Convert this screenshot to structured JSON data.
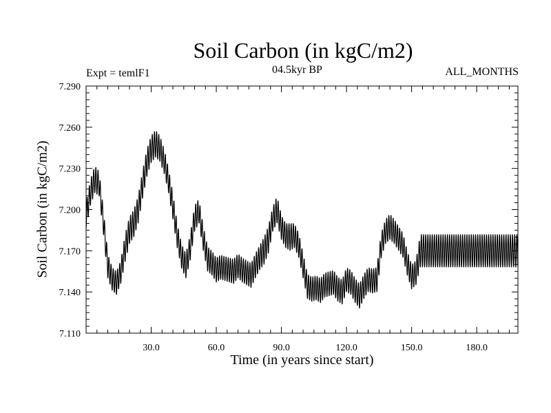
{
  "chart_data": {
    "type": "line",
    "title": "Soil Carbon (in kgC/m2)",
    "subtitle_left": "Expt = temlF1",
    "subtitle_center": "04.5kyr BP",
    "subtitle_right": "ALL_MONTHS",
    "xlabel": "Time (in years since start)",
    "ylabel": "Soil Carbon (in kgC/m2)",
    "xlim": [
      0,
      199
    ],
    "ylim": [
      7.11,
      7.29
    ],
    "xticks": [
      "30.0",
      "60.0",
      "90.0",
      "120.0",
      "150.0",
      "180.0"
    ],
    "xtick_values": [
      30,
      60,
      90,
      120,
      150,
      180
    ],
    "yticks": [
      "7.110",
      "7.140",
      "7.170",
      "7.200",
      "7.230",
      "7.260",
      "7.290"
    ],
    "ytick_values": [
      7.11,
      7.14,
      7.17,
      7.2,
      7.23,
      7.26,
      7.29
    ],
    "grid": false,
    "line_color": "#000000",
    "series": [
      {
        "name": "",
        "envelope_note": "annual-cycle band; lo/hi are monthly min/max per year",
        "x": [
          0,
          2,
          4,
          6,
          8,
          10,
          12,
          14,
          16,
          18,
          20,
          22,
          24,
          26,
          28,
          30,
          32,
          34,
          36,
          38,
          40,
          42,
          44,
          46,
          48,
          50,
          52,
          54,
          56,
          58,
          60,
          62,
          64,
          66,
          68,
          70,
          72,
          74,
          76,
          78,
          80,
          82,
          84,
          86,
          88,
          90,
          92,
          94,
          96,
          98,
          100,
          102,
          104,
          106,
          108,
          110,
          112,
          114,
          116,
          118,
          120,
          122,
          124,
          126,
          128,
          130,
          132,
          134,
          136,
          138,
          140,
          142,
          144,
          146,
          148,
          150,
          152,
          154,
          156,
          160,
          170,
          180,
          190,
          199
        ],
        "lo": [
          7.186,
          7.203,
          7.212,
          7.21,
          7.182,
          7.15,
          7.141,
          7.138,
          7.146,
          7.162,
          7.175,
          7.18,
          7.19,
          7.208,
          7.224,
          7.234,
          7.238,
          7.235,
          7.226,
          7.212,
          7.193,
          7.172,
          7.157,
          7.15,
          7.163,
          7.184,
          7.19,
          7.17,
          7.155,
          7.152,
          7.147,
          7.149,
          7.148,
          7.147,
          7.146,
          7.15,
          7.147,
          7.145,
          7.143,
          7.15,
          7.156,
          7.16,
          7.168,
          7.184,
          7.19,
          7.178,
          7.172,
          7.17,
          7.172,
          7.165,
          7.15,
          7.135,
          7.133,
          7.134,
          7.132,
          7.136,
          7.137,
          7.138,
          7.133,
          7.131,
          7.14,
          7.138,
          7.132,
          7.128,
          7.135,
          7.14,
          7.139,
          7.14,
          7.165,
          7.175,
          7.178,
          7.175,
          7.17,
          7.165,
          7.152,
          7.142,
          7.145,
          7.158,
          7.158,
          7.158,
          7.158,
          7.158,
          7.158,
          7.158
        ],
        "hi": [
          7.205,
          7.222,
          7.232,
          7.228,
          7.2,
          7.168,
          7.158,
          7.155,
          7.163,
          7.182,
          7.195,
          7.2,
          7.21,
          7.228,
          7.244,
          7.254,
          7.258,
          7.254,
          7.244,
          7.23,
          7.212,
          7.19,
          7.175,
          7.168,
          7.182,
          7.203,
          7.208,
          7.188,
          7.173,
          7.17,
          7.165,
          7.167,
          7.166,
          7.165,
          7.164,
          7.168,
          7.165,
          7.163,
          7.161,
          7.168,
          7.174,
          7.18,
          7.188,
          7.202,
          7.21,
          7.196,
          7.19,
          7.19,
          7.19,
          7.183,
          7.168,
          7.153,
          7.151,
          7.152,
          7.15,
          7.154,
          7.155,
          7.156,
          7.151,
          7.149,
          7.158,
          7.156,
          7.15,
          7.146,
          7.153,
          7.158,
          7.157,
          7.158,
          7.183,
          7.193,
          7.197,
          7.193,
          7.188,
          7.183,
          7.17,
          7.16,
          7.163,
          7.182,
          7.182,
          7.182,
          7.182,
          7.182,
          7.182,
          7.182
        ]
      }
    ]
  }
}
